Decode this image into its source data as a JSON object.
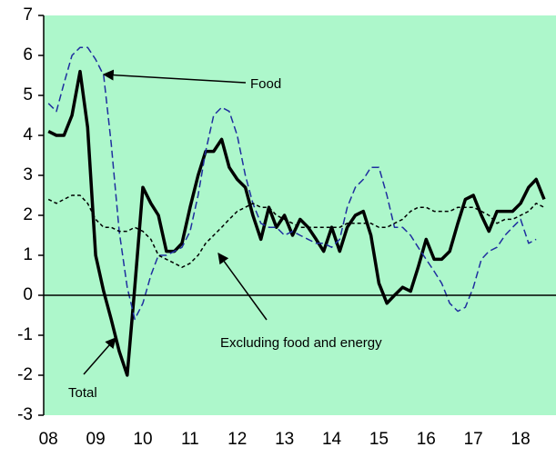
{
  "chart_data": {
    "type": "line",
    "x": [
      2008,
      2008.17,
      2008.33,
      2008.5,
      2008.67,
      2008.83,
      2009,
      2009.17,
      2009.33,
      2009.5,
      2009.67,
      2009.83,
      2010,
      2010.17,
      2010.33,
      2010.5,
      2010.67,
      2010.83,
      2011,
      2011.17,
      2011.33,
      2011.5,
      2011.67,
      2011.83,
      2012,
      2012.17,
      2012.33,
      2012.5,
      2012.67,
      2012.83,
      2013,
      2013.17,
      2013.33,
      2013.5,
      2013.67,
      2013.83,
      2014,
      2014.17,
      2014.33,
      2014.5,
      2014.67,
      2014.83,
      2015,
      2015.17,
      2015.33,
      2015.5,
      2015.67,
      2015.83,
      2016,
      2016.17,
      2016.33,
      2016.5,
      2016.67,
      2016.83,
      2017,
      2017.17,
      2017.33,
      2017.5,
      2017.67,
      2017.83,
      2018,
      2018.17,
      2018.33,
      2018.5
    ],
    "series": [
      {
        "name": "Total",
        "color": "#000000",
        "style": "solid",
        "values": [
          4.1,
          4.0,
          4.0,
          4.5,
          5.6,
          4.2,
          1.0,
          0.1,
          -0.6,
          -1.4,
          -2.0,
          0.2,
          2.7,
          2.3,
          2.0,
          1.1,
          1.1,
          1.3,
          2.2,
          3.0,
          3.6,
          3.6,
          3.9,
          3.2,
          2.9,
          2.7,
          2.0,
          1.4,
          2.2,
          1.7,
          2.0,
          1.5,
          1.9,
          1.7,
          1.4,
          1.1,
          1.7,
          1.1,
          1.7,
          2.0,
          2.1,
          1.5,
          0.3,
          -0.2,
          0.0,
          0.2,
          0.1,
          0.7,
          1.4,
          0.9,
          0.9,
          1.1,
          1.8,
          2.4,
          2.5,
          2.0,
          1.6,
          2.1,
          2.1,
          2.1,
          2.3,
          2.7,
          2.9,
          2.4
        ]
      },
      {
        "name": "Food",
        "color": "#1f2f9f",
        "style": "dashed",
        "values": [
          4.8,
          4.6,
          5.3,
          6.0,
          6.2,
          6.2,
          5.9,
          5.5,
          3.8,
          1.6,
          0.2,
          -0.6,
          -0.2,
          0.5,
          1.0,
          1.0,
          1.1,
          1.2,
          1.6,
          2.5,
          3.6,
          4.5,
          4.7,
          4.6,
          4.0,
          3.0,
          2.3,
          1.8,
          1.7,
          1.7,
          1.5,
          1.6,
          1.5,
          1.4,
          1.3,
          1.3,
          1.2,
          1.4,
          2.2,
          2.7,
          2.9,
          3.2,
          3.2,
          2.5,
          1.7,
          1.7,
          1.5,
          1.2,
          0.9,
          0.6,
          0.3,
          -0.2,
          -0.4,
          -0.3,
          0.2,
          0.9,
          1.1,
          1.2,
          1.5,
          1.7,
          1.9,
          1.3,
          1.4,
          null
        ]
      },
      {
        "name": "Excluding food and energy",
        "color": "#000000",
        "style": "dotted",
        "values": [
          2.4,
          2.3,
          2.4,
          2.5,
          2.5,
          2.3,
          1.9,
          1.7,
          1.7,
          1.6,
          1.6,
          1.7,
          1.6,
          1.4,
          1.0,
          0.9,
          0.8,
          0.7,
          0.8,
          1.0,
          1.3,
          1.5,
          1.7,
          1.9,
          2.1,
          2.2,
          2.3,
          2.2,
          2.2,
          2.0,
          1.9,
          1.8,
          1.7,
          1.7,
          1.7,
          1.7,
          1.7,
          1.7,
          1.8,
          1.8,
          1.8,
          1.8,
          1.7,
          1.7,
          1.8,
          1.9,
          2.1,
          2.2,
          2.2,
          2.1,
          2.1,
          2.1,
          2.2,
          2.2,
          2.2,
          2.1,
          2.0,
          1.8,
          1.9,
          1.9,
          2.0,
          2.1,
          2.3,
          2.2
        ]
      }
    ],
    "annotations": [
      "Food",
      "Excluding food and energy",
      "Total"
    ],
    "xlim": [
      2007.9,
      2018.75
    ],
    "xticks": [
      {
        "value": 2008,
        "label": "08"
      },
      {
        "value": 2009,
        "label": "09"
      },
      {
        "value": 2010,
        "label": "10"
      },
      {
        "value": 2011,
        "label": "11"
      },
      {
        "value": 2012,
        "label": "12"
      },
      {
        "value": 2013,
        "label": "13"
      },
      {
        "value": 2014,
        "label": "14"
      },
      {
        "value": 2015,
        "label": "15"
      },
      {
        "value": 2016,
        "label": "16"
      },
      {
        "value": 2017,
        "label": "17"
      },
      {
        "value": 2018,
        "label": "18"
      }
    ],
    "ylim": [
      -3,
      7
    ],
    "yticks": [
      -3,
      -2,
      -1,
      0,
      1,
      2,
      3,
      4,
      5,
      6,
      7
    ],
    "background": "#adf7cb"
  }
}
